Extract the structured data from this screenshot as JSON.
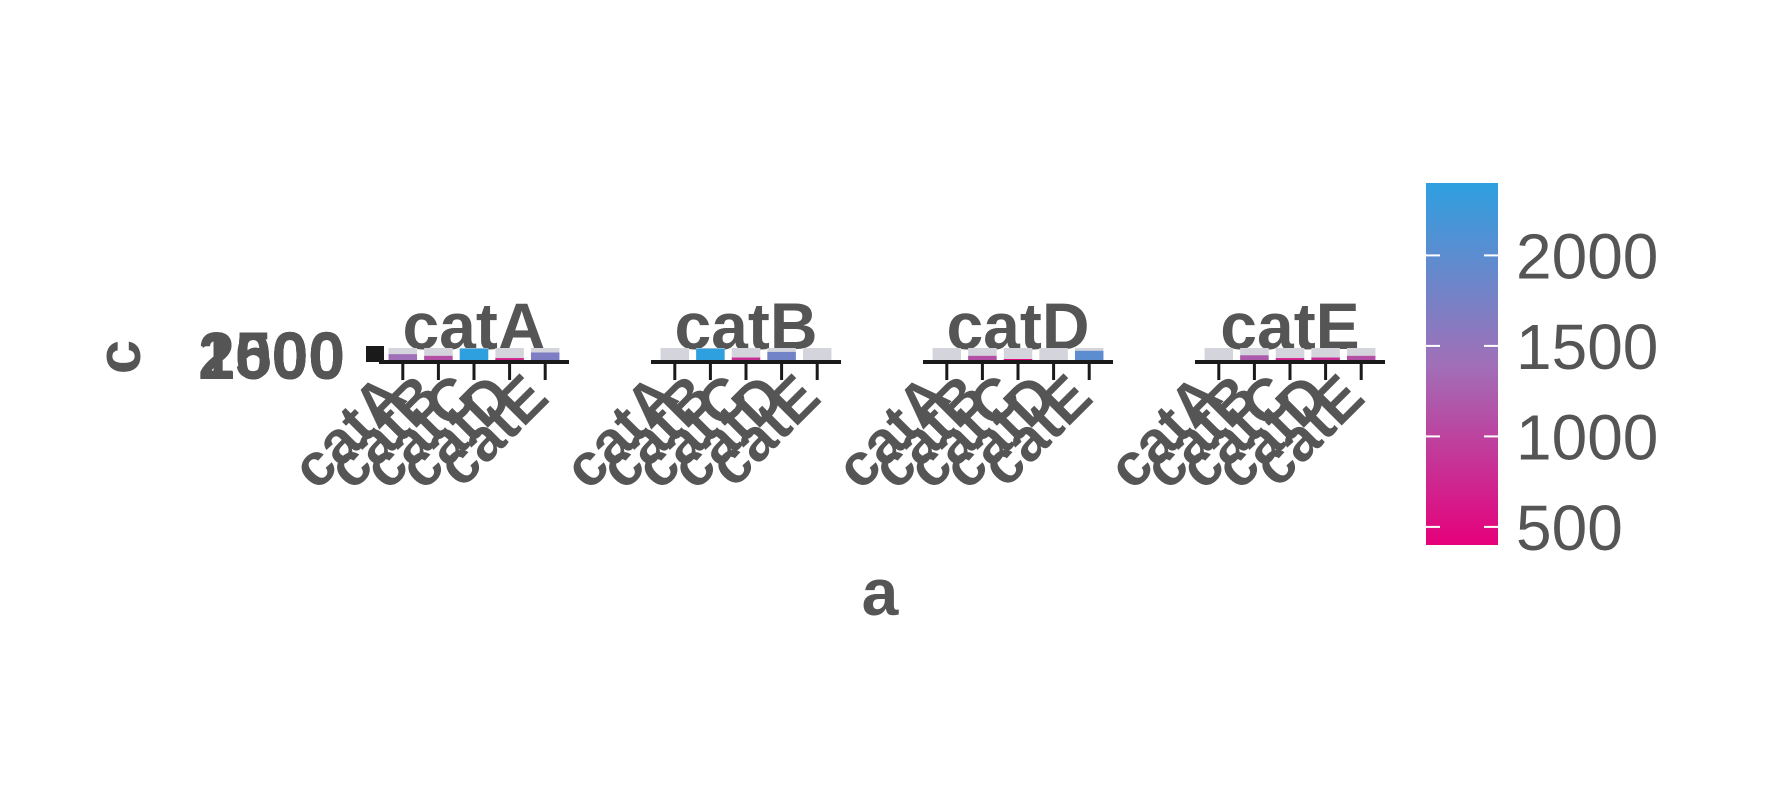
{
  "chart_data": {
    "type": "bar",
    "facets": [
      "catA",
      "catB",
      "catD",
      "catE"
    ],
    "categories": [
      "catA",
      "catB",
      "catC",
      "catD",
      "catE"
    ],
    "xlabel": "a",
    "ylabel": "c",
    "ytick_labels": [
      "500",
      "1000",
      "1500",
      "2000",
      "2500"
    ],
    "ylim": [
      0,
      2500
    ],
    "legend": {
      "placement": "right",
      "type": "colorbar",
      "ticks": [
        500,
        1000,
        1500,
        2000
      ],
      "tick_labels": [
        "500",
        "1000",
        "1500",
        "2000"
      ],
      "range": [
        400,
        2400
      ],
      "low_color": "#e6007a",
      "high_color": "#2ea0e0"
    },
    "series": [
      {
        "facet": "catA",
        "values": [
          1400,
          1100,
          2400,
          700,
          1700
        ]
      },
      {
        "facet": "catB",
        "values": [
          null,
          2400,
          800,
          1800,
          null
        ]
      },
      {
        "facet": "catD",
        "values": [
          null,
          1100,
          500,
          null,
          2000
        ]
      },
      {
        "facet": "catE",
        "values": [
          null,
          1200,
          700,
          800,
          1100
        ]
      }
    ],
    "background_bar_color": "#d4d4dc",
    "text_color": "#555555",
    "grid": false
  }
}
